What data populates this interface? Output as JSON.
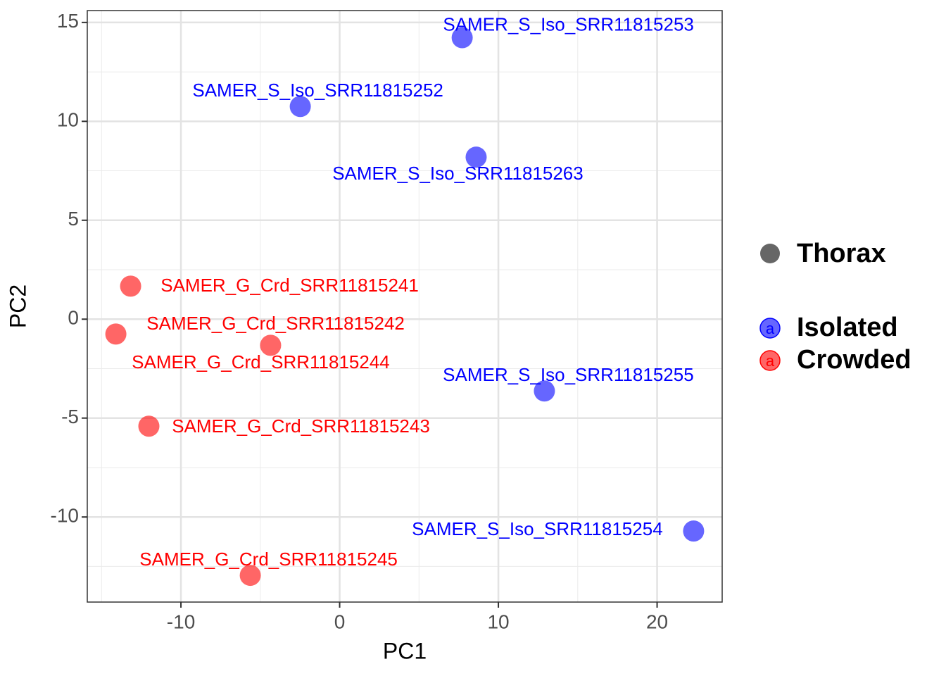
{
  "chart_data": {
    "type": "scatter",
    "x_label": "PC1",
    "y_label": "PC2",
    "xlim": [
      -15.9,
      24.1
    ],
    "ylim": [
      -14.3,
      15.6
    ],
    "xticks": [
      -10,
      0,
      10,
      20
    ],
    "yticks": [
      -10,
      -5,
      0,
      5,
      10,
      15
    ],
    "x_minor_ticks": [
      -15,
      -5,
      5,
      15
    ],
    "y_minor_ticks": [
      -12.5,
      -7.5,
      -2.5,
      2.5,
      7.5,
      12.5
    ],
    "grid": true,
    "shape_legend": "Thorax",
    "legend_key_text": "a",
    "series": [
      {
        "name": "Isolated",
        "color": "#0000ff",
        "x": [
          7.72,
          -2.48,
          8.6,
          12.9,
          22.3
        ],
        "values": [
          14.23,
          10.75,
          8.19,
          -3.63,
          -10.71
        ],
        "labels": [
          "SAMER_S_Iso_SRR11815253",
          "SAMER_S_Iso_SRR11815252",
          "SAMER_S_Iso_SRR11815263",
          "SAMER_S_Iso_SRR11815255",
          "SAMER_S_Iso_SRR11815254"
        ]
      },
      {
        "name": "Crowded",
        "color": "#ff0000",
        "x": [
          -13.17,
          -14.1,
          -4.35,
          -12.02,
          -5.63
        ],
        "values": [
          1.67,
          -0.75,
          -1.32,
          -5.41,
          -12.95
        ],
        "labels": [
          "SAMER_G_Crd_SRR11815241",
          "SAMER_G_Crd_SRR11815242",
          "SAMER_G_Crd_SRR11815244",
          "SAMER_G_Crd_SRR11815243",
          "SAMER_G_Crd_SRR11815245"
        ]
      }
    ]
  }
}
